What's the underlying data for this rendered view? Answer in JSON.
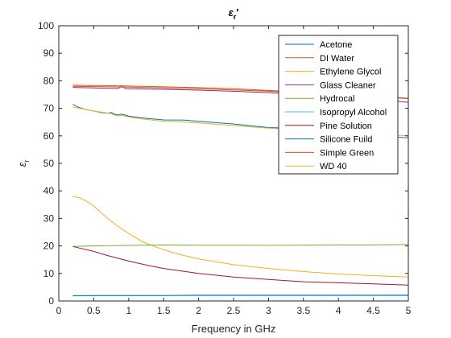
{
  "chart_data": {
    "type": "line",
    "title": "εr′",
    "xlabel": "Frequency in GHz",
    "ylabel": "εr",
    "xlim": [
      0,
      5
    ],
    "ylim": [
      0,
      100
    ],
    "x_ticks": [
      0,
      0.5,
      1,
      1.5,
      2,
      2.5,
      3,
      3.5,
      4,
      4.5,
      5
    ],
    "x_tick_labels": [
      "0",
      "0.5",
      "1",
      "1.5",
      "2",
      "2.5",
      "3",
      "3.5",
      "4",
      "4.5",
      "5"
    ],
    "y_ticks": [
      0,
      10,
      20,
      30,
      40,
      50,
      60,
      70,
      80,
      90,
      100
    ],
    "y_tick_labels": [
      "0",
      "10",
      "20",
      "30",
      "40",
      "50",
      "60",
      "70",
      "80",
      "90",
      "100"
    ],
    "grid": false,
    "legend_position": "top-right",
    "series": [
      {
        "name": "Acetone",
        "color": "#0072BD",
        "x": [
          0.2,
          0.25,
          0.3,
          0.4,
          0.5,
          0.6,
          0.7,
          0.75,
          0.8,
          0.85,
          0.9,
          1.0,
          1.2,
          1.5,
          1.8,
          2.0,
          2.5,
          3.0,
          3.5,
          4.0,
          4.5,
          5.0
        ],
        "y": [
          71.5,
          70.8,
          70.2,
          69.5,
          69.0,
          68.5,
          68.2,
          68.5,
          67.8,
          67.6,
          67.9,
          67.2,
          66.5,
          65.8,
          65.7,
          65.3,
          64.3,
          63.0,
          62.6,
          61.5,
          60.0,
          59.3
        ]
      },
      {
        "name": "DI Water",
        "color": "#D95319",
        "x": [
          0.2,
          0.5,
          1.0,
          1.5,
          2.0,
          2.5,
          3.0,
          3.5,
          4.0,
          4.5,
          5.0
        ],
        "y": [
          78.4,
          78.3,
          78.1,
          77.8,
          77.5,
          77.1,
          76.5,
          75.9,
          75.3,
          74.6,
          73.6
        ]
      },
      {
        "name": "Ethylene Glycol",
        "color": "#EDB120",
        "x": [
          0.2,
          0.3,
          0.4,
          0.5,
          0.6,
          0.7,
          0.8,
          0.9,
          1.0,
          1.2,
          1.4,
          1.6,
          1.8,
          2.0,
          2.5,
          3.0,
          3.5,
          4.0,
          4.5,
          5.0
        ],
        "y": [
          38.0,
          37.5,
          36.2,
          34.5,
          32.2,
          30.0,
          28.0,
          26.2,
          24.5,
          21.5,
          19.5,
          17.8,
          16.5,
          15.3,
          13.2,
          11.8,
          10.7,
          9.8,
          9.2,
          8.7
        ]
      },
      {
        "name": "Glass Cleaner",
        "color": "#7E2F8E",
        "x": [
          0.2,
          0.5,
          0.85,
          0.9,
          0.95,
          1.0,
          1.5,
          2.0,
          2.5,
          3.0,
          3.5,
          4.0,
          4.5,
          5.0
        ],
        "y": [
          77.6,
          77.4,
          77.2,
          78.0,
          77.2,
          77.1,
          76.9,
          76.6,
          76.2,
          75.7,
          75.0,
          74.2,
          73.3,
          72.2
        ]
      },
      {
        "name": "Hydrocal",
        "color": "#77AC30",
        "x": [
          0.2,
          0.5,
          1.0,
          1.5,
          2.0,
          2.5,
          3.0,
          3.5,
          4.0,
          4.5,
          5.0
        ],
        "y": [
          19.8,
          20.0,
          20.2,
          20.4,
          20.3,
          20.3,
          20.2,
          20.3,
          20.4,
          20.4,
          20.5
        ]
      },
      {
        "name": "Isopropyl Alcohol",
        "color": "#4DBEEE",
        "x": [
          0.2,
          0.5,
          1.0,
          1.5,
          2.0,
          2.5,
          3.0,
          3.5,
          4.0,
          4.5,
          5.0
        ],
        "y": [
          1.8,
          1.9,
          1.9,
          2.0,
          2.0,
          2.0,
          2.0,
          2.0,
          2.0,
          2.0,
          2.0
        ]
      },
      {
        "name": "Pine Solution",
        "color": "#A2142F",
        "x": [
          0.2,
          0.3,
          0.5,
          0.7,
          1.0,
          1.3,
          1.5,
          2.0,
          2.5,
          3.0,
          3.5,
          4.0,
          4.5,
          5.0
        ],
        "y": [
          19.8,
          19.2,
          18.0,
          16.5,
          14.5,
          12.8,
          11.8,
          10.0,
          8.7,
          7.8,
          7.0,
          6.6,
          6.2,
          5.8
        ]
      },
      {
        "name": "Silicone Fuild",
        "color": "#0072BD",
        "x": [
          0.2,
          0.5,
          1.0,
          1.5,
          2.0,
          2.5,
          3.0,
          3.5,
          4.0,
          4.5,
          5.0
        ],
        "y": [
          1.9,
          2.0,
          2.0,
          2.0,
          2.1,
          2.1,
          2.1,
          2.1,
          2.1,
          2.1,
          2.1
        ]
      },
      {
        "name": "Simple Green",
        "color": "#D95319",
        "x": [
          0.2,
          0.5,
          1.0,
          1.5,
          2.0,
          2.5,
          3.0,
          3.5,
          4.0,
          4.5,
          5.0
        ],
        "y": [
          78.0,
          77.9,
          77.7,
          77.4,
          77.1,
          76.7,
          76.2,
          75.6,
          75.0,
          74.3,
          73.5
        ]
      },
      {
        "name": "WD 40",
        "color": "#EDB120",
        "x": [
          0.2,
          0.3,
          0.5,
          0.7,
          0.75,
          0.8,
          0.85,
          0.9,
          1.0,
          1.2,
          1.5,
          1.8,
          2.0,
          2.5,
          3.0,
          3.5,
          4.0,
          4.5,
          5.0
        ],
        "y": [
          70.5,
          70.0,
          69.0,
          68.3,
          68.0,
          67.5,
          67.2,
          67.5,
          66.8,
          66.1,
          65.3,
          65.0,
          64.7,
          63.7,
          62.8,
          62.0,
          61.3,
          60.6,
          60.0
        ]
      }
    ]
  }
}
